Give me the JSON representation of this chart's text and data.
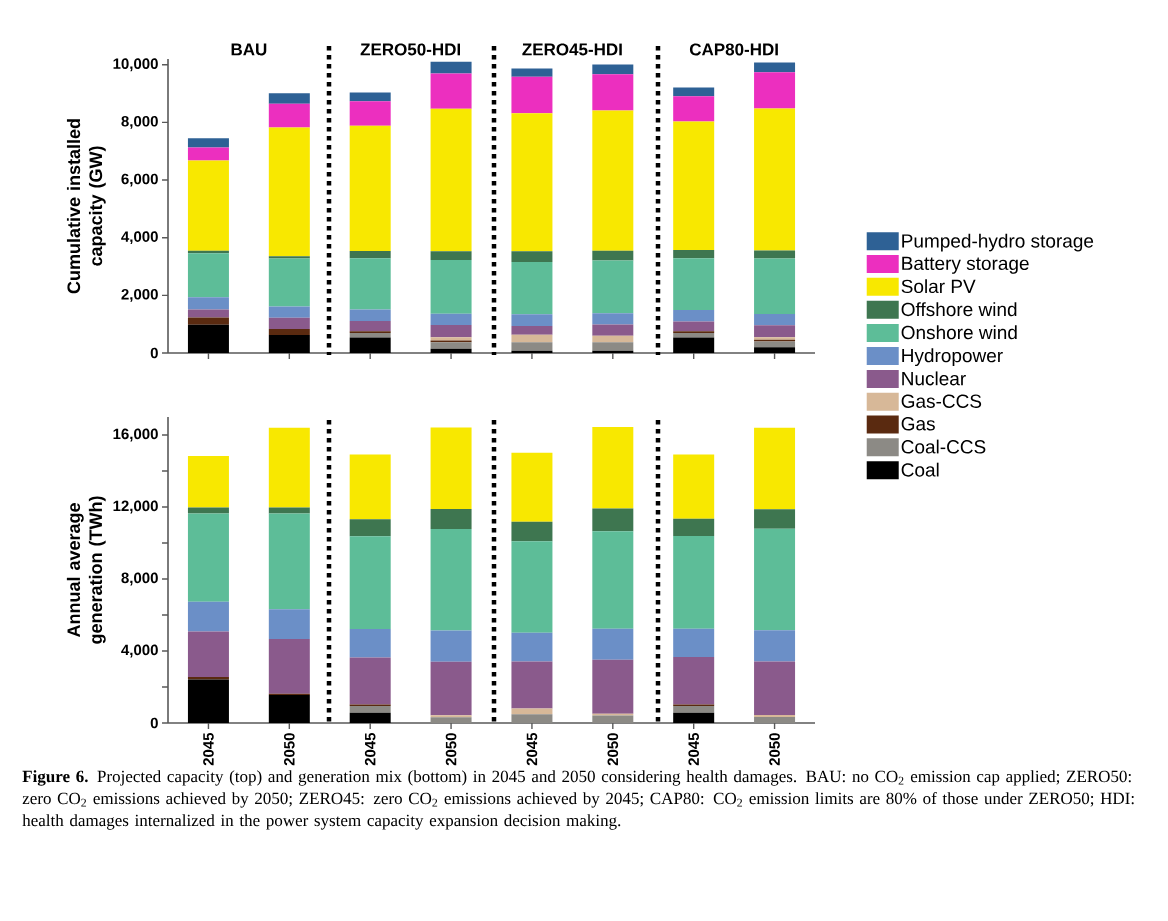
{
  "chart_data": [
    {
      "type": "bar",
      "stacked": true,
      "ylabel": "Cumulative installed capacity (GW)",
      "categories": [
        null,
        null,
        null,
        null,
        null,
        null,
        null,
        null
      ],
      "ylim": [
        0,
        10200
      ],
      "yticks": [
        0,
        {
          "value": 2000,
          "label": "2,000"
        },
        {
          "value": 4000,
          "label": "4,000"
        },
        {
          "value": 6000,
          "label": "6,000"
        },
        {
          "value": 8000,
          "label": "8,000"
        },
        {
          "value": 10000,
          "label": "10,000"
        }
      ],
      "tick_labels": "y",
      "legend": "right",
      "annotations": [
        "BAU",
        "ZERO50-HDI",
        "ZERO45-HDI",
        "CAP80-HDI"
      ],
      "series": [
        {
          "name": "Coal",
          "color": "#000000",
          "values": [
            980,
            620,
            540,
            150,
            80,
            80,
            540,
            200
          ]
        },
        {
          "name": "Coal-CCS",
          "color": "#8c8a85",
          "values": [
            0,
            0,
            150,
            220,
            290,
            290,
            150,
            200
          ]
        },
        {
          "name": "Gas",
          "color": "#5a2a10",
          "values": [
            250,
            210,
            60,
            60,
            0,
            0,
            60,
            60
          ]
        },
        {
          "name": "Gas-CCS",
          "color": "#d7b898",
          "values": [
            0,
            0,
            0,
            120,
            260,
            230,
            0,
            90
          ]
        },
        {
          "name": "Nuclear",
          "color": "#8a5a8c",
          "values": [
            280,
            390,
            360,
            420,
            310,
            390,
            340,
            410
          ]
        },
        {
          "name": "Hydropower",
          "color": "#6b8fc7",
          "values": [
            420,
            390,
            400,
            390,
            400,
            390,
            400,
            390
          ]
        },
        {
          "name": "Onshore wind",
          "color": "#5dbd98",
          "values": [
            1530,
            1670,
            1780,
            1870,
            1820,
            1830,
            1800,
            1930
          ]
        },
        {
          "name": "Offshore wind",
          "color": "#3e7650",
          "values": [
            90,
            80,
            250,
            300,
            370,
            340,
            280,
            280
          ]
        },
        {
          "name": "Solar PV",
          "color": "#f8e800",
          "values": [
            3130,
            4460,
            4340,
            4940,
            4790,
            4860,
            4460,
            4920
          ]
        },
        {
          "name": "Battery storage",
          "color": "#ec2fbf",
          "values": [
            450,
            830,
            850,
            1230,
            1260,
            1260,
            880,
            1260
          ]
        },
        {
          "name": "Pumped-hydro storage",
          "color": "#2e6195",
          "values": [
            320,
            360,
            310,
            400,
            290,
            340,
            300,
            340
          ]
        }
      ]
    },
    {
      "type": "bar",
      "stacked": true,
      "ylabel": "Annual average generation (TWh)",
      "categories": [
        "2045",
        "2050",
        "2045",
        "2050",
        "2045",
        "2050",
        "2045",
        "2050"
      ],
      "ylim": [
        0,
        17000
      ],
      "yticks": [
        0,
        {
          "value": 2000,
          "label": null
        },
        {
          "value": 4000,
          "label": "4,000"
        },
        {
          "value": 6000,
          "label": null
        },
        {
          "value": 8000,
          "label": "8,000"
        },
        {
          "value": 10000,
          "label": null
        },
        {
          "value": 12000,
          "label": "12,000"
        },
        {
          "value": 14000,
          "label": null
        },
        {
          "value": 16000,
          "label": "16,000"
        }
      ],
      "annotations": [
        "**Figure 6.** Projected capacity (top) and generation mix (bottom) in 2045 and 2050 considering health damages. BAU: no CO$_{2}$ emission cap applied; ZERO50: zero CO$_{2}$ emissions achieved by 2050; ZERO45: zero CO$_{2}$ emissions achieved by 2045; CAP80: CO$_{2}$ emission limits are 80% of those under ZERO50; HDI: health damages internalized in the power system capacity expansion decision making."
      ],
      "series": [
        {
          "color": "#000000",
          "values": [
            2410,
            1560,
            570,
            0,
            0,
            0,
            570,
            0
          ]
        },
        {
          "color": "#8c8a85",
          "values": [
            0,
            0,
            370,
            320,
            480,
            410,
            370,
            330
          ]
        },
        {
          "color": "#5a2a10",
          "values": [
            150,
            70,
            90,
            0,
            0,
            0,
            90,
            0
          ]
        },
        {
          "color": "#d7b898",
          "values": [
            0,
            0,
            0,
            110,
            330,
            110,
            0,
            110
          ]
        },
        {
          "color": "#8a5a8c",
          "values": [
            2520,
            3040,
            2610,
            2970,
            2610,
            3000,
            2630,
            2970
          ]
        },
        {
          "color": "#6b8fc7",
          "values": [
            1650,
            1650,
            1580,
            1740,
            1590,
            1720,
            1580,
            1740
          ]
        },
        {
          "color": "#5dbd98",
          "values": [
            4910,
            5320,
            5150,
            5640,
            5080,
            5410,
            5150,
            5640
          ]
        },
        {
          "color": "#3e7650",
          "values": [
            330,
            330,
            950,
            1110,
            1090,
            1260,
            950,
            1090
          ]
        },
        {
          "color": "#f8e800",
          "values": [
            2860,
            4430,
            3600,
            4520,
            3840,
            4540,
            3580,
            4520
          ]
        }
      ]
    }
  ]
}
